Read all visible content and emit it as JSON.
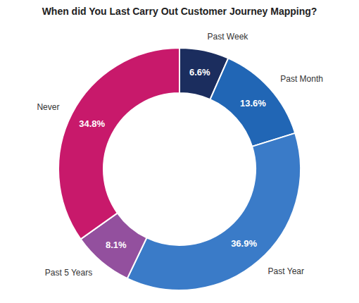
{
  "chart_data": {
    "type": "pie",
    "title": "When did You Last Carry Out Customer Journey Mapping?",
    "categories": [
      "Past Week",
      "Past Month",
      "Past Year",
      "Past 5 Years",
      "Never"
    ],
    "values": [
      6.6,
      13.6,
      36.9,
      8.1,
      34.8
    ],
    "value_labels": [
      "6.6%",
      "13.6%",
      "36.9%",
      "8.1%",
      "34.8%"
    ],
    "colors": [
      "#1b2d5e",
      "#2166b5",
      "#3a7bc8",
      "#93509e",
      "#c8196b"
    ],
    "data_labels": true
  }
}
